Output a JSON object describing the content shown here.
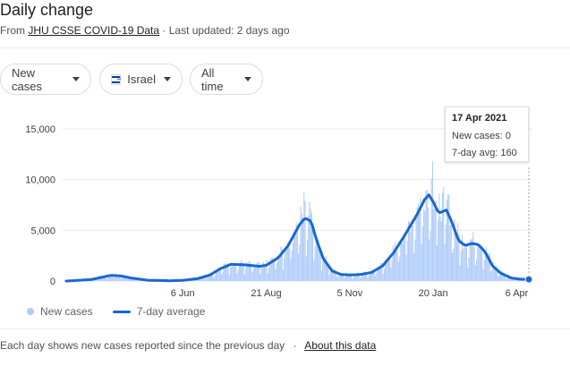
{
  "header": {
    "title": "Daily change",
    "source_prefix": "From",
    "source_link": "JHU CSSE COVID-19 Data",
    "updated": "· Last updated: 2 days ago"
  },
  "filters": {
    "metric": "New cases",
    "country": "Israel",
    "range": "All time"
  },
  "tooltip": {
    "date": "17 Apr 2021",
    "new_cases": "New cases: 0",
    "avg": "7-day avg: 160"
  },
  "legend": {
    "bars": "New cases",
    "line": "7-day average"
  },
  "footer": {
    "text": "Each day shows new cases reported since the previous day",
    "sep": "·",
    "link": "About this data"
  },
  "colors": {
    "bar": "#aecbfa",
    "line": "#1967d2",
    "grid": "#e8eaed"
  },
  "chart_data": {
    "type": "bar",
    "title": "Daily change",
    "x_range": [
      "2020-02-21",
      "2021-04-17"
    ],
    "ylim": [
      0,
      15000
    ],
    "y_ticks": [
      {
        "value": 0,
        "label": "0"
      },
      {
        "value": 5000,
        "label": "5,000"
      },
      {
        "value": 10000,
        "label": "10,000"
      },
      {
        "value": 15000,
        "label": "15,000"
      }
    ],
    "x_ticks": [
      {
        "date": "2020-06-06",
        "label": "6 Jun"
      },
      {
        "date": "2020-08-21",
        "label": "21 Aug"
      },
      {
        "date": "2020-11-05",
        "label": "5 Nov"
      },
      {
        "date": "2021-01-20",
        "label": "20 Jan"
      },
      {
        "date": "2021-04-06",
        "label": "6 Apr"
      }
    ],
    "series": [
      {
        "name": "7-day average",
        "type": "line",
        "points": [
          [
            "2020-02-21",
            0
          ],
          [
            "2020-03-15",
            150
          ],
          [
            "2020-04-01",
            550
          ],
          [
            "2020-04-10",
            520
          ],
          [
            "2020-04-20",
            300
          ],
          [
            "2020-05-05",
            80
          ],
          [
            "2020-05-25",
            30
          ],
          [
            "2020-06-06",
            60
          ],
          [
            "2020-06-20",
            250
          ],
          [
            "2020-07-01",
            600
          ],
          [
            "2020-07-10",
            1200
          ],
          [
            "2020-07-20",
            1650
          ],
          [
            "2020-08-01",
            1600
          ],
          [
            "2020-08-15",
            1450
          ],
          [
            "2020-08-21",
            1550
          ],
          [
            "2020-09-01",
            2300
          ],
          [
            "2020-09-10",
            3500
          ],
          [
            "2020-09-20",
            5500
          ],
          [
            "2020-09-25",
            6200
          ],
          [
            "2020-10-01",
            5900
          ],
          [
            "2020-10-05",
            4300
          ],
          [
            "2020-10-12",
            2200
          ],
          [
            "2020-10-20",
            1000
          ],
          [
            "2020-10-28",
            650
          ],
          [
            "2020-11-05",
            600
          ],
          [
            "2020-11-15",
            650
          ],
          [
            "2020-11-25",
            850
          ],
          [
            "2020-12-05",
            1500
          ],
          [
            "2020-12-15",
            2800
          ],
          [
            "2020-12-25",
            4500
          ],
          [
            "2021-01-05",
            6500
          ],
          [
            "2021-01-12",
            8000
          ],
          [
            "2021-01-16",
            8500
          ],
          [
            "2021-01-20",
            7800
          ],
          [
            "2021-01-25",
            6700
          ],
          [
            "2021-02-01",
            7000
          ],
          [
            "2021-02-06",
            5800
          ],
          [
            "2021-02-12",
            4000
          ],
          [
            "2021-02-18",
            3500
          ],
          [
            "2021-02-24",
            3700
          ],
          [
            "2021-03-02",
            3600
          ],
          [
            "2021-03-08",
            2900
          ],
          [
            "2021-03-15",
            1500
          ],
          [
            "2021-03-22",
            800
          ],
          [
            "2021-04-01",
            300
          ],
          [
            "2021-04-10",
            180
          ],
          [
            "2021-04-17",
            160
          ]
        ]
      },
      {
        "name": "New cases",
        "type": "bar",
        "notable_days": [
          [
            "2020-09-24",
            8700
          ],
          [
            "2020-09-30",
            7100
          ],
          [
            "2021-01-18",
            10100
          ],
          [
            "2021-01-19",
            11800
          ],
          [
            "2021-02-02",
            8500
          ],
          [
            "2021-04-17",
            0
          ]
        ]
      }
    ],
    "highlight_date": "2021-04-17"
  }
}
